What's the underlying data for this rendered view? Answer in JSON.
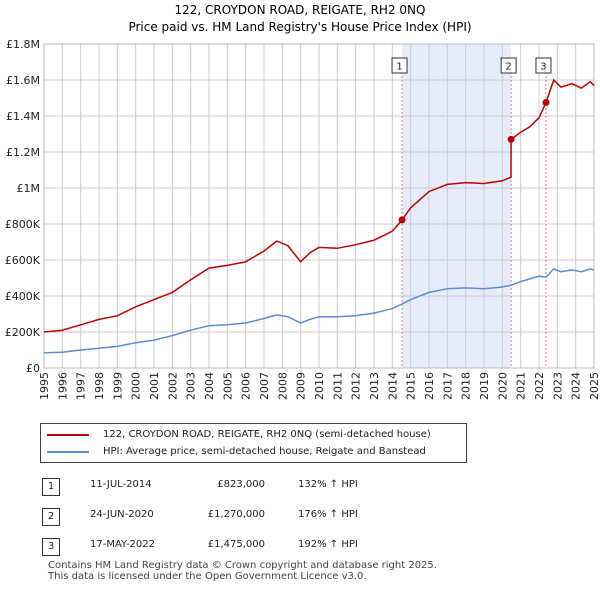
{
  "colors": {
    "property": "#c00000",
    "hpi": "#5b8dd6",
    "shade": "#e6ecfb",
    "grid": "#cccccc",
    "marker_line": "#e08080"
  },
  "chart_data": {
    "type": "line",
    "title": "122, CROYDON ROAD, REIGATE, RH2 0NQ",
    "subtitle": "Price paid vs. HM Land Registry's House Price Index (HPI)",
    "xlim": [
      1995,
      2025
    ],
    "ylim": [
      0,
      1800000
    ],
    "y_ticks": [
      {
        "value": 0,
        "label": "£0"
      },
      {
        "value": 200000,
        "label": "£200K"
      },
      {
        "value": 400000,
        "label": "£400K"
      },
      {
        "value": 600000,
        "label": "£600K"
      },
      {
        "value": 800000,
        "label": "£800K"
      },
      {
        "value": 1000000,
        "label": "£1M"
      },
      {
        "value": 1200000,
        "label": "£1.2M"
      },
      {
        "value": 1400000,
        "label": "£1.4M"
      },
      {
        "value": 1600000,
        "label": "£1.6M"
      },
      {
        "value": 1800000,
        "label": "£1.8M"
      }
    ],
    "x_ticks": [
      "1995",
      "1996",
      "1997",
      "1998",
      "1999",
      "2000",
      "2001",
      "2002",
      "2003",
      "2004",
      "2005",
      "2006",
      "2007",
      "2008",
      "2009",
      "2010",
      "2011",
      "2012",
      "2013",
      "2014",
      "2015",
      "2016",
      "2017",
      "2018",
      "2019",
      "2020",
      "2021",
      "2022",
      "2023",
      "2024",
      "2025"
    ],
    "shaded_period": [
      2014.53,
      2020.48
    ],
    "series": [
      {
        "name": "122, CROYDON ROAD, REIGATE, RH2 0NQ (semi-detached house)",
        "color_key": "property",
        "points": [
          [
            1995.0,
            200000
          ],
          [
            1996.0,
            210000
          ],
          [
            1997.0,
            240000
          ],
          [
            1998.0,
            270000
          ],
          [
            1999.0,
            290000
          ],
          [
            2000.0,
            340000
          ],
          [
            2001.0,
            380000
          ],
          [
            2002.0,
            420000
          ],
          [
            2003.0,
            490000
          ],
          [
            2004.0,
            555000
          ],
          [
            2005.0,
            570000
          ],
          [
            2006.0,
            590000
          ],
          [
            2007.0,
            650000
          ],
          [
            2007.7,
            705000
          ],
          [
            2008.3,
            680000
          ],
          [
            2009.0,
            590000
          ],
          [
            2009.5,
            640000
          ],
          [
            2010.0,
            670000
          ],
          [
            2011.0,
            665000
          ],
          [
            2012.0,
            685000
          ],
          [
            2013.0,
            710000
          ],
          [
            2014.0,
            760000
          ],
          [
            2014.53,
            823000
          ],
          [
            2015.0,
            890000
          ],
          [
            2016.0,
            980000
          ],
          [
            2017.0,
            1020000
          ],
          [
            2018.0,
            1030000
          ],
          [
            2019.0,
            1025000
          ],
          [
            2020.0,
            1040000
          ],
          [
            2020.47,
            1060000
          ],
          [
            2020.48,
            1270000
          ],
          [
            2021.0,
            1310000
          ],
          [
            2021.5,
            1340000
          ],
          [
            2022.0,
            1390000
          ],
          [
            2022.38,
            1475000
          ],
          [
            2022.8,
            1600000
          ],
          [
            2023.2,
            1560000
          ],
          [
            2023.8,
            1580000
          ],
          [
            2024.3,
            1555000
          ],
          [
            2024.8,
            1590000
          ],
          [
            2025.0,
            1570000
          ]
        ]
      },
      {
        "name": "HPI: Average price, semi-detached house, Reigate and Banstead",
        "color_key": "hpi",
        "points": [
          [
            1995.0,
            85000
          ],
          [
            1996.0,
            88000
          ],
          [
            1997.0,
            100000
          ],
          [
            1998.0,
            110000
          ],
          [
            1999.0,
            120000
          ],
          [
            2000.0,
            140000
          ],
          [
            2001.0,
            155000
          ],
          [
            2002.0,
            180000
          ],
          [
            2003.0,
            210000
          ],
          [
            2004.0,
            235000
          ],
          [
            2005.0,
            240000
          ],
          [
            2006.0,
            250000
          ],
          [
            2007.0,
            275000
          ],
          [
            2007.7,
            295000
          ],
          [
            2008.3,
            285000
          ],
          [
            2009.0,
            250000
          ],
          [
            2009.5,
            270000
          ],
          [
            2010.0,
            285000
          ],
          [
            2011.0,
            285000
          ],
          [
            2012.0,
            290000
          ],
          [
            2013.0,
            305000
          ],
          [
            2014.0,
            330000
          ],
          [
            2014.53,
            355000
          ],
          [
            2015.0,
            380000
          ],
          [
            2016.0,
            420000
          ],
          [
            2017.0,
            440000
          ],
          [
            2018.0,
            445000
          ],
          [
            2019.0,
            440000
          ],
          [
            2020.0,
            450000
          ],
          [
            2020.48,
            460000
          ],
          [
            2021.0,
            480000
          ],
          [
            2022.0,
            510000
          ],
          [
            2022.38,
            505000
          ],
          [
            2022.8,
            550000
          ],
          [
            2023.2,
            535000
          ],
          [
            2023.8,
            545000
          ],
          [
            2024.3,
            535000
          ],
          [
            2024.8,
            550000
          ],
          [
            2025.0,
            545000
          ]
        ]
      }
    ],
    "sales": [
      {
        "num": "1",
        "x": 2014.53,
        "price": 823000
      },
      {
        "num": "2",
        "x": 2020.48,
        "price": 1270000
      },
      {
        "num": "3",
        "x": 2022.38,
        "price": 1475000
      }
    ]
  },
  "legend": {
    "property_label": "122, CROYDON ROAD, REIGATE, RH2 0NQ (semi-detached house)",
    "hpi_label": "HPI: Average price, semi-detached house, Reigate and Banstead"
  },
  "sales_table": [
    {
      "num": "1",
      "date": "11-JUL-2014",
      "price": "£823,000",
      "pct": "132% ↑ HPI"
    },
    {
      "num": "2",
      "date": "24-JUN-2020",
      "price": "£1,270,000",
      "pct": "176% ↑ HPI"
    },
    {
      "num": "3",
      "date": "17-MAY-2022",
      "price": "£1,475,000",
      "pct": "192% ↑ HPI"
    }
  ],
  "footer": {
    "line1": "Contains HM Land Registry data © Crown copyright and database right 2025.",
    "line2": "This data is licensed under the Open Government Licence v3.0."
  }
}
